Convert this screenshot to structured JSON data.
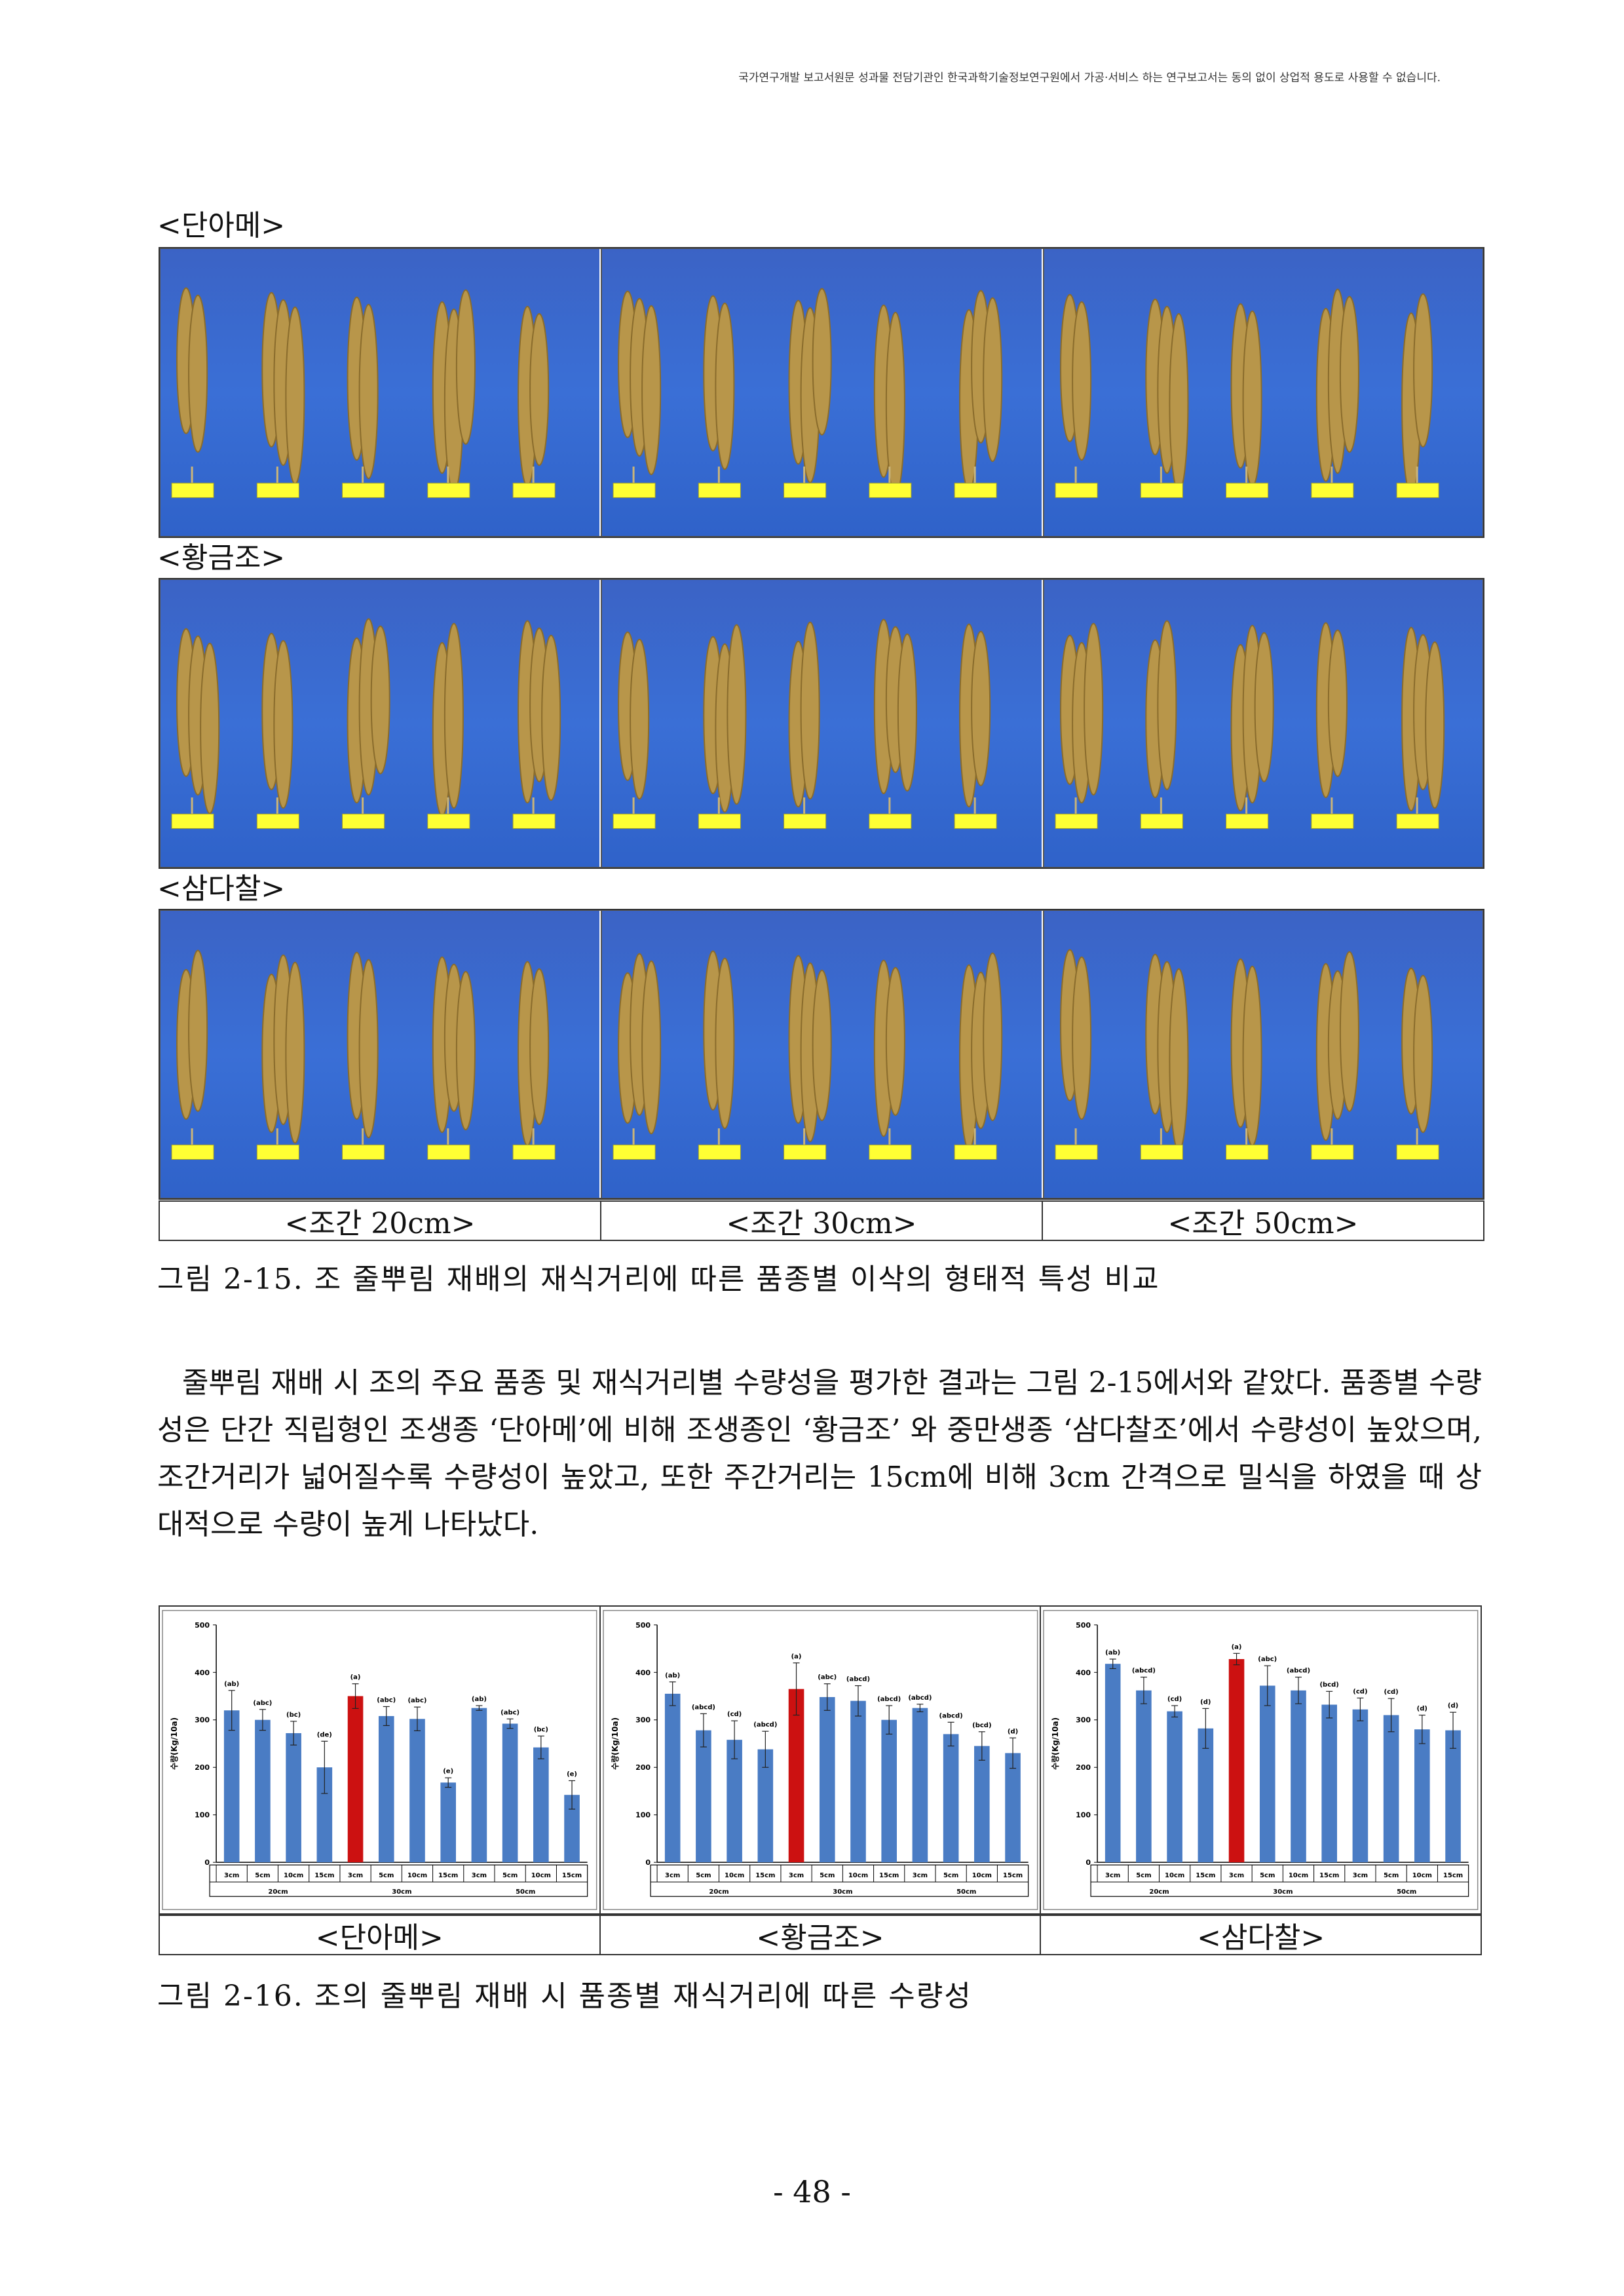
{
  "header": {
    "notice": "국가연구개발 보고서원문 성과물 전담기관인 한국과학기술정보연구원에서 가공·서비스 하는 연구보고서는 동의 없이 상업적 용도로 사용할 수 없습니다."
  },
  "varieties": [
    {
      "label": "<단아메>"
    },
    {
      "label": "<황금조>"
    },
    {
      "label": "<삼다찰>"
    }
  ],
  "photo_captions": [
    "<조간 20cm>",
    "<조간 30cm>",
    "<조간 50cm>"
  ],
  "figure1_caption": "그림 2-15. 조 줄뿌림 재배의 재식거리에 따른 품종별 이삭의 형태적 특성 비교",
  "paragraph": "줄뿌림 재배 시 조의 주요 품종 및 재식거리별 수량성을 평가한 결과는 그림 2-15에서와 같았다. 품종별 수량성은 단간 직립형인 조생종 ‘단아메’에 비해 조생종인 ‘황금조’ 와 중만생종 ‘삼다찰조’에서 수량성이 높았으며, 조간거리가 넓어질수록 수량성이 높았고, 또한 주간거리는 15cm에 비해 3cm 간격으로 밀식을 하였을 때 상대적으로 수량이 높게 나타났다.",
  "chart_captions": [
    "<단아메>",
    "<황금조>",
    "<삼다찰>"
  ],
  "figure2_caption": "그림 2-16. 조의 줄뿌림 재배 시 품종별 재식거리에 따른 수량성",
  "page_number": "- 48 -",
  "colors": {
    "bar": "#4a7cc4",
    "highlight": "#cc1111",
    "photo_bg": "#3a6fd6",
    "spike": "#b8964a"
  },
  "chart_data": [
    {
      "type": "bar",
      "ylabel": "수량(Kg/10a)",
      "ylim": [
        0,
        500
      ],
      "yticks": [
        "0",
        "100",
        "200",
        "300",
        "400",
        "500"
      ],
      "categories": [
        "3cm",
        "5cm",
        "10cm",
        "15cm",
        "3cm",
        "5cm",
        "10cm",
        "15cm",
        "3cm",
        "5cm",
        "10cm",
        "15cm"
      ],
      "groups": [
        "20cm",
        "30cm",
        "50cm"
      ],
      "values": [
        320,
        300,
        272,
        200,
        350,
        308,
        302,
        168,
        325,
        292,
        242,
        142
      ],
      "errors": [
        42,
        22,
        25,
        55,
        26,
        20,
        25,
        10,
        5,
        10,
        24,
        30
      ],
      "letters": [
        "(ab)",
        "(abc)",
        "(bc)",
        "(de)",
        "(a)",
        "(abc)",
        "(abc)",
        "(e)",
        "(ab)",
        "(abc)",
        "(bc)",
        "(e)"
      ],
      "highlight_index": 4
    },
    {
      "type": "bar",
      "ylabel": "수량(Kg/10a)",
      "ylim": [
        0,
        500
      ],
      "yticks": [
        "0",
        "100",
        "200",
        "300",
        "400",
        "500"
      ],
      "categories": [
        "3cm",
        "5cm",
        "10cm",
        "15cm",
        "3cm",
        "5cm",
        "10cm",
        "15cm",
        "3cm",
        "5cm",
        "10cm",
        "15cm"
      ],
      "groups": [
        "20cm",
        "30cm",
        "50cm"
      ],
      "values": [
        355,
        278,
        258,
        238,
        365,
        348,
        340,
        300,
        325,
        270,
        245,
        230
      ],
      "errors": [
        25,
        35,
        40,
        38,
        55,
        28,
        32,
        30,
        8,
        25,
        30,
        32
      ],
      "letters": [
        "(ab)",
        "(abcd)",
        "(cd)",
        "(abcd)",
        "(a)",
        "(abc)",
        "(abcd)",
        "(abcd)",
        "(abcd)",
        "(abcd)",
        "(bcd)",
        "(d)"
      ],
      "highlight_index": 4
    },
    {
      "type": "bar",
      "ylabel": "수량(Kg/10a)",
      "ylim": [
        0,
        500
      ],
      "yticks": [
        "0",
        "100",
        "200",
        "300",
        "400",
        "500"
      ],
      "categories": [
        "3cm",
        "5cm",
        "10cm",
        "15cm",
        "3cm",
        "5cm",
        "10cm",
        "15cm",
        "3cm",
        "5cm",
        "10cm",
        "15cm"
      ],
      "groups": [
        "20cm",
        "30cm",
        "50cm"
      ],
      "values": [
        418,
        362,
        318,
        282,
        428,
        372,
        362,
        332,
        322,
        310,
        280,
        278
      ],
      "errors": [
        10,
        28,
        12,
        42,
        12,
        42,
        28,
        28,
        24,
        35,
        30,
        38
      ],
      "letters": [
        "(ab)",
        "(abcd)",
        "(cd)",
        "(d)",
        "(a)",
        "(abc)",
        "(abcd)",
        "(bcd)",
        "(cd)",
        "(cd)",
        "(d)",
        "(d)"
      ],
      "highlight_index": 4
    }
  ]
}
